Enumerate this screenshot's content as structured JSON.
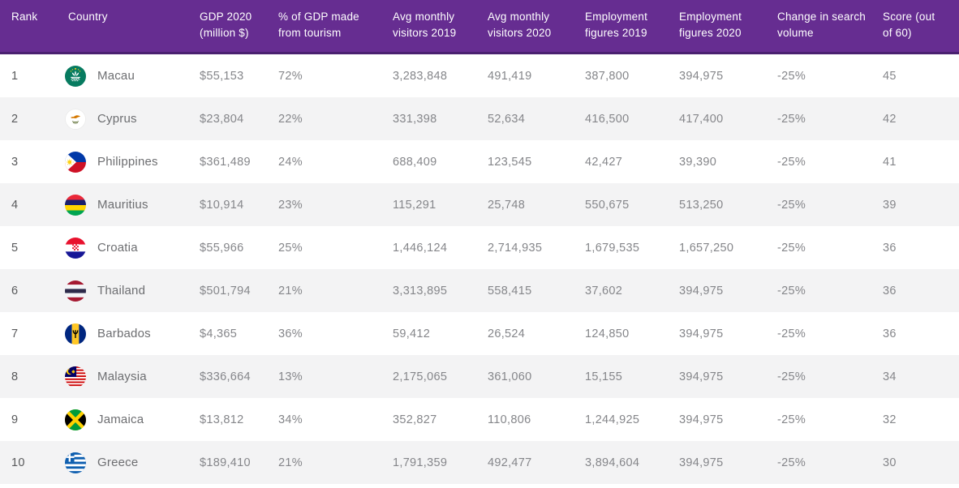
{
  "colors": {
    "header_bg": "#662d91",
    "header_border": "#4a2170",
    "header_text": "#ffffff",
    "row_bg": "#ffffff",
    "row_alt_bg": "#f3f3f4",
    "rank_text": "#58595b",
    "country_text": "#6d6e71",
    "number_text": "#85868a"
  },
  "chart_data": {
    "type": "table",
    "columns": [
      "Rank",
      "Country",
      "GDP 2020 (million $)",
      "% of GDP made from tourism",
      "Avg monthly visitors 2019",
      "Avg monthly visitors 2020",
      "Employment figures 2019",
      "Employment figures 2020",
      "Change in search volume",
      "Score (out of 60)"
    ],
    "rows": [
      {
        "rank": "1",
        "flag_icon": "flag-macau",
        "country": "Macau",
        "gdp": "$55,153",
        "pct_gdp_tourism": "72%",
        "visitors_2019": "3,283,848",
        "visitors_2020": "491,419",
        "employment_2019": "387,800",
        "employment_2020": "394,975",
        "search_change": "-25%",
        "score": "45"
      },
      {
        "rank": "2",
        "flag_icon": "flag-cyprus",
        "country": "Cyprus",
        "gdp": "$23,804",
        "pct_gdp_tourism": "22%",
        "visitors_2019": "331,398",
        "visitors_2020": "52,634",
        "employment_2019": "416,500",
        "employment_2020": "417,400",
        "search_change": "-25%",
        "score": "42"
      },
      {
        "rank": "3",
        "flag_icon": "flag-philippines",
        "country": "Philippines",
        "gdp": "$361,489",
        "pct_gdp_tourism": "24%",
        "visitors_2019": "688,409",
        "visitors_2020": "123,545",
        "employment_2019": "42,427",
        "employment_2020": "39,390",
        "search_change": "-25%",
        "score": "41"
      },
      {
        "rank": "4",
        "flag_icon": "flag-mauritius",
        "country": "Mauritius",
        "gdp": "$10,914",
        "pct_gdp_tourism": "23%",
        "visitors_2019": "115,291",
        "visitors_2020": "25,748",
        "employment_2019": "550,675",
        "employment_2020": "513,250",
        "search_change": "-25%",
        "score": "39"
      },
      {
        "rank": "5",
        "flag_icon": "flag-croatia",
        "country": "Croatia",
        "gdp": "$55,966",
        "pct_gdp_tourism": "25%",
        "visitors_2019": "1,446,124",
        "visitors_2020": "2,714,935",
        "employment_2019": "1,679,535",
        "employment_2020": "1,657,250",
        "search_change": "-25%",
        "score": "36"
      },
      {
        "rank": "6",
        "flag_icon": "flag-thailand",
        "country": "Thailand",
        "gdp": "$501,794",
        "pct_gdp_tourism": "21%",
        "visitors_2019": "3,313,895",
        "visitors_2020": "558,415",
        "employment_2019": "37,602",
        "employment_2020": "394,975",
        "search_change": "-25%",
        "score": "36"
      },
      {
        "rank": "7",
        "flag_icon": "flag-barbados",
        "country": "Barbados",
        "gdp": "$4,365",
        "pct_gdp_tourism": "36%",
        "visitors_2019": "59,412",
        "visitors_2020": "26,524",
        "employment_2019": "124,850",
        "employment_2020": "394,975",
        "search_change": "-25%",
        "score": "36"
      },
      {
        "rank": "8",
        "flag_icon": "flag-malaysia",
        "country": "Malaysia",
        "gdp": "$336,664",
        "pct_gdp_tourism": "13%",
        "visitors_2019": "2,175,065",
        "visitors_2020": "361,060",
        "employment_2019": "15,155",
        "employment_2020": "394,975",
        "search_change": "-25%",
        "score": "34"
      },
      {
        "rank": "9",
        "flag_icon": "flag-jamaica",
        "country": "Jamaica",
        "gdp": "$13,812",
        "pct_gdp_tourism": "34%",
        "visitors_2019": "352,827",
        "visitors_2020": "110,806",
        "employment_2019": "1,244,925",
        "employment_2020": "394,975",
        "search_change": "-25%",
        "score": "32"
      },
      {
        "rank": "10",
        "flag_icon": "flag-greece",
        "country": "Greece",
        "gdp": "$189,410",
        "pct_gdp_tourism": "21%",
        "visitors_2019": "1,791,359",
        "visitors_2020": "492,477",
        "employment_2019": "3,894,604",
        "employment_2020": "394,975",
        "search_change": "-25%",
        "score": "30"
      }
    ]
  }
}
